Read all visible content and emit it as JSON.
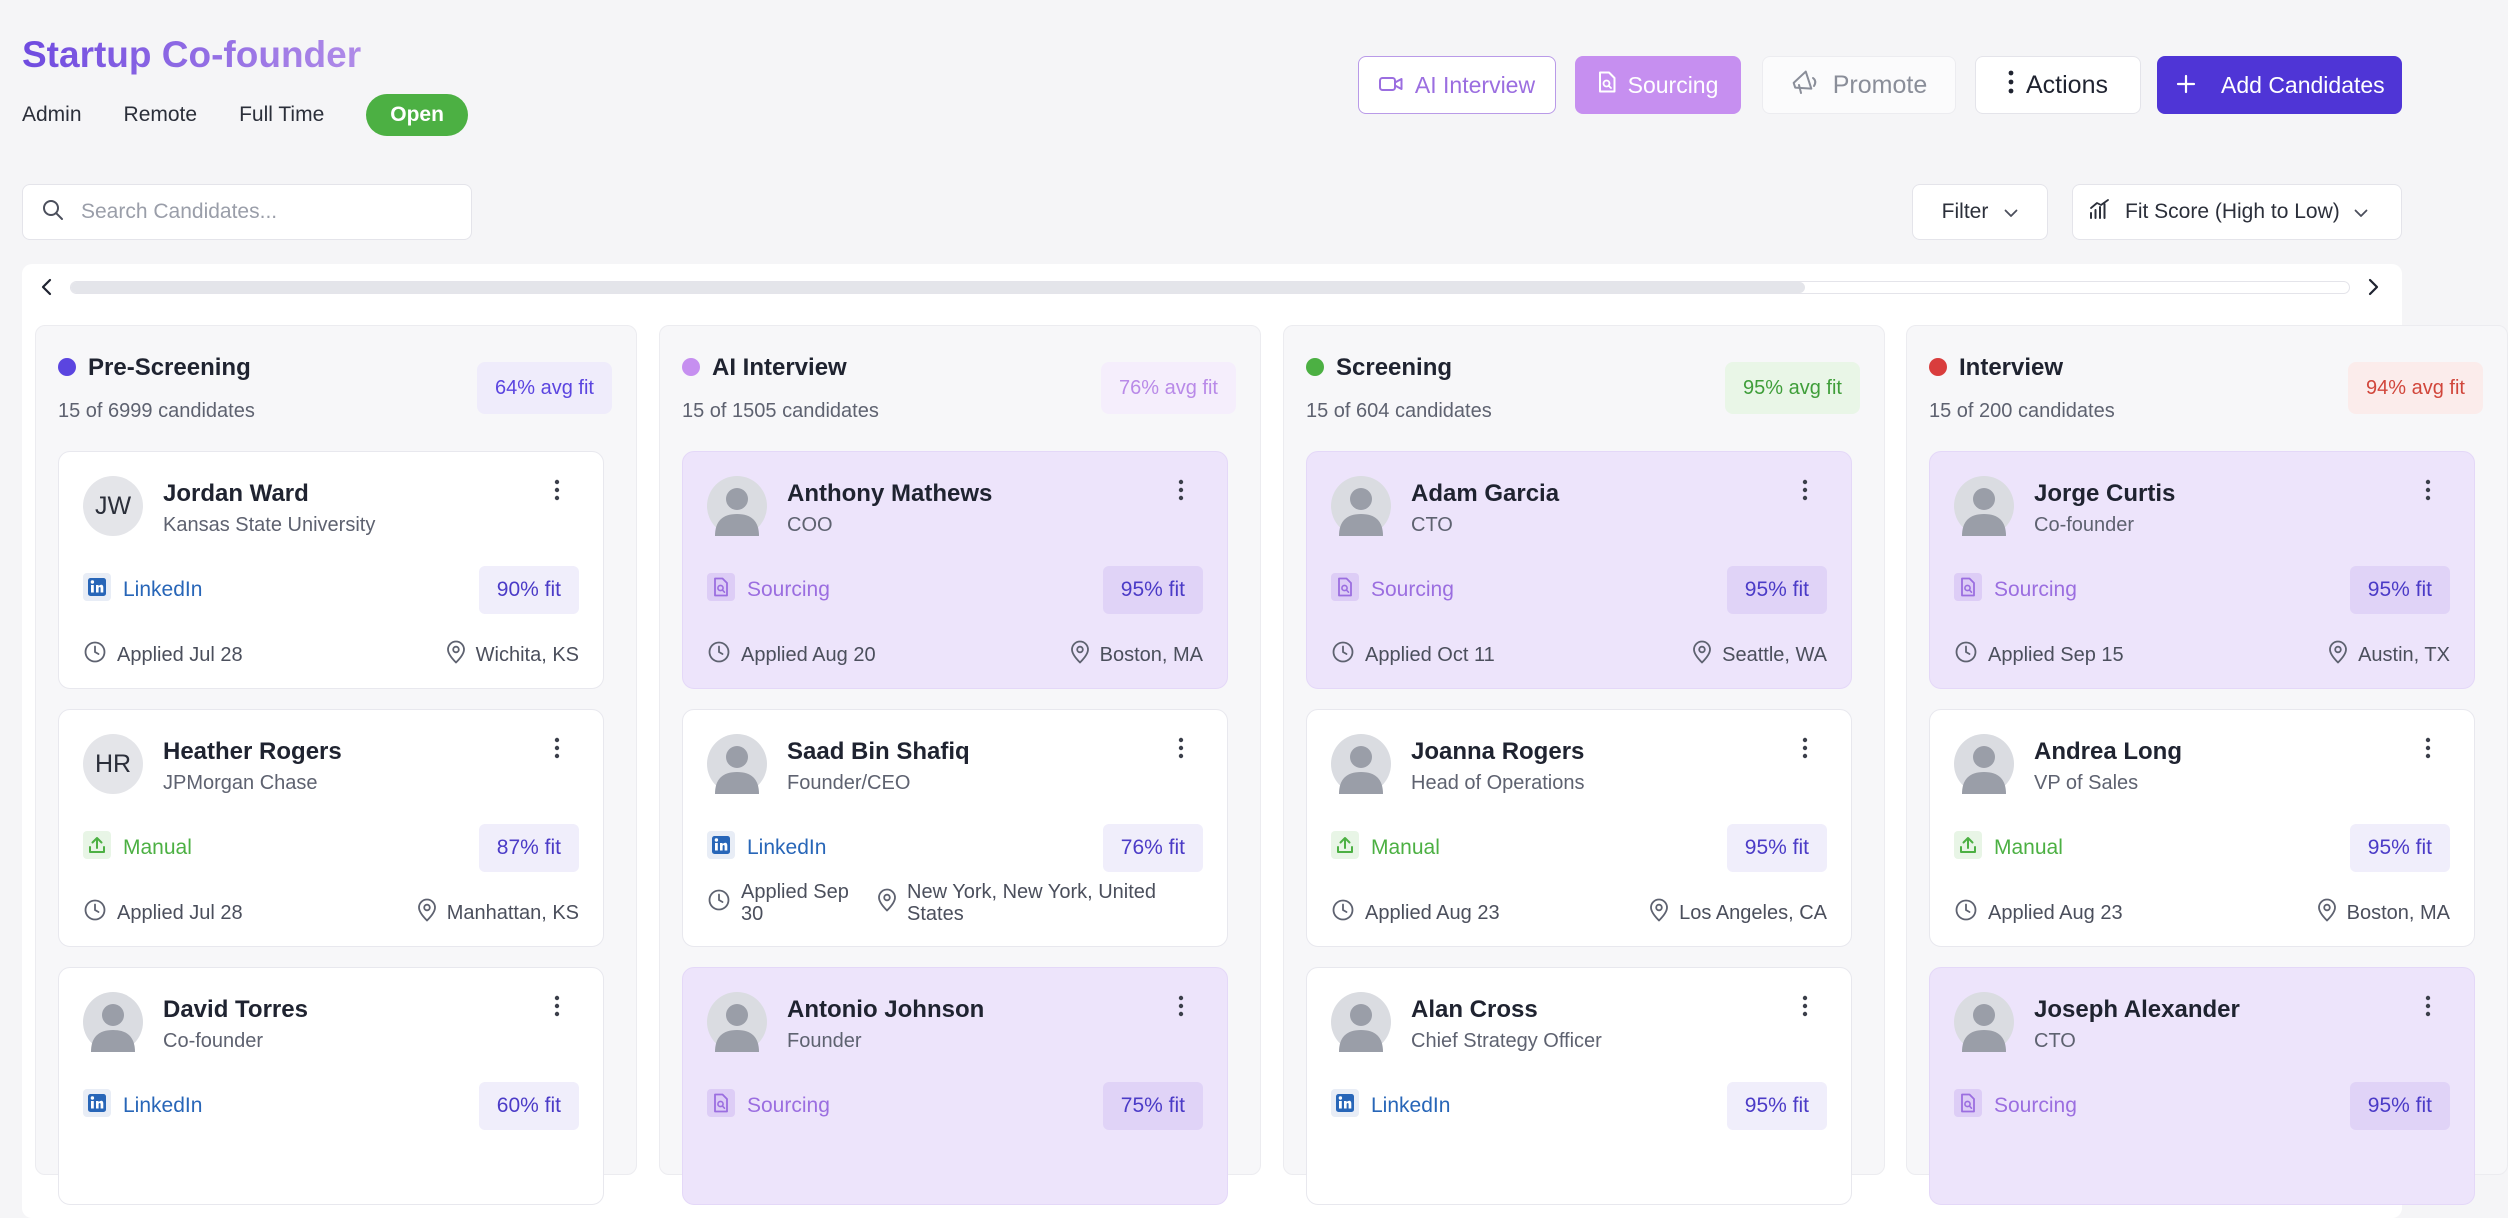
{
  "job": {
    "title": "Startup Co-founder",
    "department": "Admin",
    "workplace": "Remote",
    "employment_type": "Full Time",
    "status": "Open",
    "status_color": "#4cb043"
  },
  "header_buttons": {
    "ai_interview": "AI Interview",
    "sourcing": "Sourcing",
    "promote": "Promote",
    "actions": "Actions",
    "add_candidates": "Add Candidates"
  },
  "toolbar": {
    "search_placeholder": "Search Candidates...",
    "filter_label": "Filter",
    "sort_label": "Fit Score (High to Low)"
  },
  "colors": {
    "primary": "#4f35d6",
    "sourcing_accent": "#9b6ee0",
    "linkedin": "#2866b8",
    "manual": "#4cb043",
    "card_tint": "#ede4fb"
  },
  "source_labels": {
    "linkedin": "LinkedIn",
    "manual": "Manual",
    "sourcing": "Sourcing"
  },
  "columns": [
    {
      "name": "Pre-Screening",
      "dot_color": "#5b45e0",
      "count": "15 of 6999 candidates",
      "avg_fit": "64% avg fit",
      "avg_fit_color": "#5b45e0",
      "avg_fit_bg": "#efecfb",
      "cards": [
        {
          "name": "Jordan Ward",
          "subtitle": "Kansas State University",
          "avatar_initials": "JW",
          "source": "linkedin",
          "fit": "90% fit",
          "applied": "Applied Jul 28",
          "location": "Wichita, KS",
          "highlighted": false
        },
        {
          "name": "Heather Rogers",
          "subtitle": "JPMorgan Chase",
          "avatar_initials": "HR",
          "source": "manual",
          "fit": "87% fit",
          "applied": "Applied Jul 28",
          "location": "Manhattan, KS",
          "highlighted": false
        },
        {
          "name": "David Torres",
          "subtitle": "Co-founder",
          "avatar_initials": "",
          "source": "linkedin",
          "fit": "60% fit",
          "applied": "",
          "location": "",
          "highlighted": false
        }
      ]
    },
    {
      "name": "AI Interview",
      "dot_color": "#c68ff0",
      "count": "15 of 1505 candidates",
      "avg_fit": "76% avg fit",
      "avg_fit_color": "#b98ae8",
      "avg_fit_bg": "#f5eefc",
      "cards": [
        {
          "name": "Anthony Mathews",
          "subtitle": "COO",
          "avatar_initials": "",
          "source": "sourcing",
          "fit": "95% fit",
          "applied": "Applied Aug 20",
          "location": "Boston, MA",
          "highlighted": true
        },
        {
          "name": "Saad Bin Shafiq",
          "subtitle": "Founder/CEO",
          "avatar_initials": "",
          "source": "linkedin",
          "fit": "76% fit",
          "applied": "Applied Sep 30",
          "location": "New York, New York, United States",
          "highlighted": false
        },
        {
          "name": "Antonio Johnson",
          "subtitle": "Founder",
          "avatar_initials": "",
          "source": "sourcing",
          "fit": "75% fit",
          "applied": "",
          "location": "",
          "highlighted": true
        }
      ]
    },
    {
      "name": "Screening",
      "dot_color": "#4cb043",
      "count": "15 of 604 candidates",
      "avg_fit": "95% avg fit",
      "avg_fit_color": "#3f9e3a",
      "avg_fit_bg": "#e9f6e7",
      "cards": [
        {
          "name": "Adam Garcia",
          "subtitle": "CTO",
          "avatar_initials": "",
          "source": "sourcing",
          "fit": "95% fit",
          "applied": "Applied Oct 11",
          "location": "Seattle, WA",
          "highlighted": true
        },
        {
          "name": "Joanna Rogers",
          "subtitle": "Head of Operations",
          "avatar_initials": "",
          "source": "manual",
          "fit": "95% fit",
          "applied": "Applied Aug 23",
          "location": "Los Angeles, CA",
          "highlighted": false
        },
        {
          "name": "Alan Cross",
          "subtitle": "Chief Strategy Officer",
          "avatar_initials": "",
          "source": "linkedin",
          "fit": "95% fit",
          "applied": "",
          "location": "",
          "highlighted": false
        }
      ]
    },
    {
      "name": "Interview",
      "dot_color": "#d93d3d",
      "count": "15 of 200 candidates",
      "avg_fit": "94% avg fit",
      "avg_fit_color": "#d1463b",
      "avg_fit_bg": "#fbeceb",
      "cards": [
        {
          "name": "Jorge Curtis",
          "subtitle": "Co-founder",
          "avatar_initials": "",
          "source": "sourcing",
          "fit": "95% fit",
          "applied": "Applied Sep 15",
          "location": "Austin, TX",
          "highlighted": true
        },
        {
          "name": "Andrea Long",
          "subtitle": "VP of Sales",
          "avatar_initials": "",
          "source": "manual",
          "fit": "95% fit",
          "applied": "Applied Aug 23",
          "location": "Boston, MA",
          "highlighted": false
        },
        {
          "name": "Joseph Alexander",
          "subtitle": "CTO",
          "avatar_initials": "",
          "source": "sourcing",
          "fit": "95% fit",
          "applied": "",
          "location": "",
          "highlighted": true
        }
      ]
    }
  ]
}
